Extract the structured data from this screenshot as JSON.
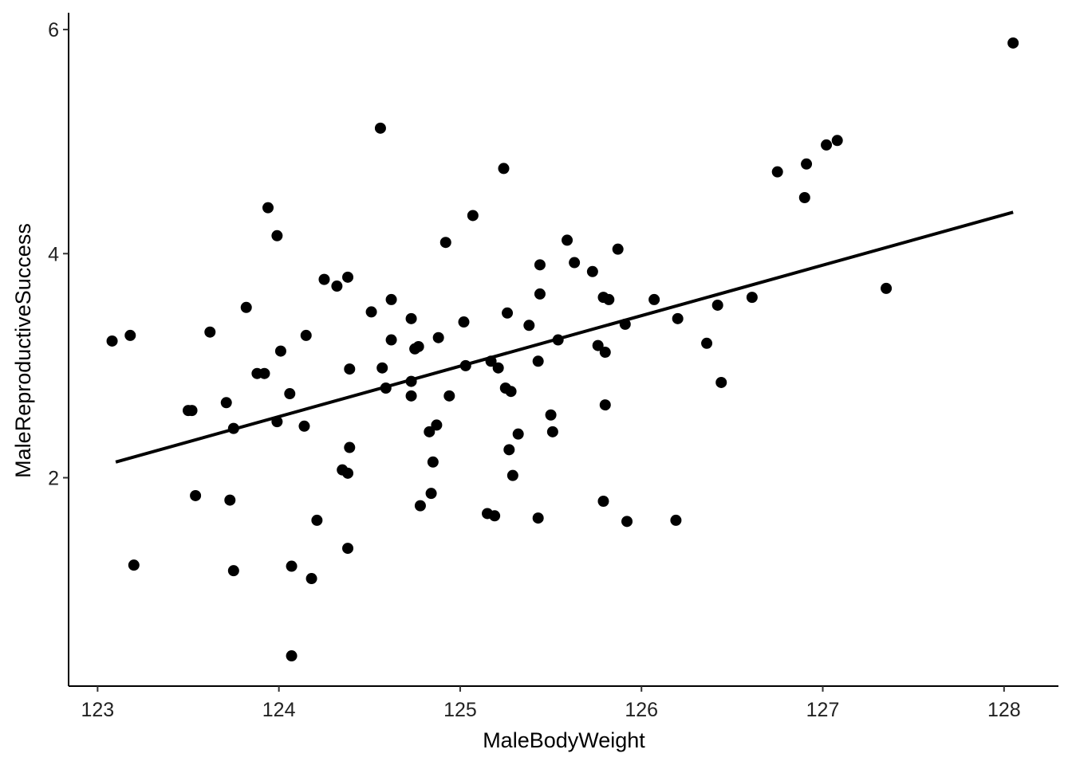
{
  "chart_data": {
    "type": "scatter",
    "x_label": "MaleBodyWeight",
    "y_label": "MaleReproductiveSuccess",
    "color": "#000000",
    "x": [
      123.08,
      123.18,
      123.2,
      123.5,
      123.52,
      123.54,
      123.62,
      123.71,
      123.73,
      123.75,
      123.75,
      123.82,
      123.88,
      123.92,
      123.94,
      123.99,
      123.99,
      124.01,
      124.06,
      124.07,
      124.07,
      124.14,
      124.15,
      124.18,
      124.21,
      124.25,
      124.32,
      124.35,
      124.38,
      124.38,
      124.38,
      124.39,
      124.39,
      124.51,
      124.56,
      124.57,
      124.59,
      124.62,
      124.62,
      124.73,
      124.73,
      124.73,
      124.75,
      124.77,
      124.78,
      124.83,
      124.84,
      124.85,
      124.87,
      124.88,
      124.92,
      124.94,
      125.02,
      125.03,
      125.07,
      125.15,
      125.17,
      125.19,
      125.21,
      125.24,
      125.25,
      125.26,
      125.27,
      125.28,
      125.29,
      125.32,
      125.38,
      125.43,
      125.43,
      125.44,
      125.44,
      125.5,
      125.51,
      125.54,
      125.59,
      125.63,
      125.73,
      125.76,
      125.79,
      125.79,
      125.8,
      125.8,
      125.82,
      125.87,
      125.91,
      125.92,
      126.07,
      126.19,
      126.2,
      126.36,
      126.42,
      126.44,
      126.61,
      126.75,
      126.9,
      126.91,
      127.02,
      127.08,
      127.35,
      128.05
    ],
    "values": [
      3.22,
      3.27,
      1.22,
      2.6,
      2.6,
      1.84,
      3.3,
      2.67,
      1.8,
      2.44,
      1.17,
      3.52,
      2.93,
      2.93,
      4.41,
      4.16,
      2.5,
      3.13,
      2.75,
      0.41,
      1.21,
      2.46,
      3.27,
      1.1,
      1.62,
      3.77,
      3.71,
      2.07,
      3.79,
      2.04,
      1.37,
      2.97,
      2.27,
      3.48,
      5.12,
      2.98,
      2.8,
      3.23,
      3.59,
      3.42,
      2.86,
      2.73,
      3.15,
      3.17,
      1.75,
      2.41,
      1.86,
      2.14,
      2.47,
      3.25,
      4.1,
      2.73,
      3.39,
      3.0,
      4.34,
      1.68,
      3.04,
      1.66,
      2.98,
      4.76,
      2.8,
      3.47,
      2.25,
      2.77,
      2.02,
      2.39,
      3.36,
      3.04,
      1.64,
      3.64,
      3.9,
      2.56,
      2.41,
      3.23,
      4.12,
      3.92,
      3.84,
      3.18,
      3.61,
      1.79,
      2.65,
      3.12,
      3.59,
      4.04,
      3.37,
      1.61,
      3.59,
      1.62,
      3.42,
      3.2,
      3.54,
      2.85,
      3.61,
      4.73,
      4.5,
      4.8,
      4.97,
      5.01,
      3.69,
      5.88
    ],
    "fit": {
      "x": [
        123.1,
        128.05
      ],
      "values": [
        2.14,
        4.37
      ]
    },
    "xlim": [
      122.84,
      128.3
    ],
    "xticks": [
      123,
      124,
      125,
      126,
      127,
      128
    ],
    "ylim": [
      0.14,
      6.15
    ],
    "yticks": [
      2,
      4,
      6
    ],
    "grid": false
  }
}
